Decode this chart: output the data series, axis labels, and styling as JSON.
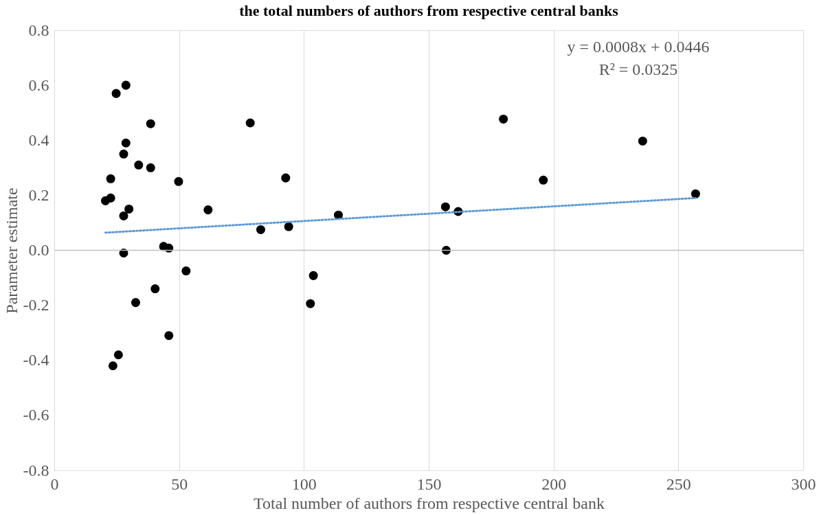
{
  "chart_data": {
    "type": "scatter",
    "title": "the total numbers of authors from respective central banks",
    "xlabel": "Total number of authors from respective central bank",
    "ylabel": "Parameter estimate",
    "xlim": [
      0,
      300
    ],
    "xticks": [
      0,
      50,
      100,
      150,
      200,
      250,
      300
    ],
    "ylim": [
      -0.8,
      0.8
    ],
    "yticks": [
      {
        "value": 0.8,
        "label": "0.8"
      },
      {
        "value": 0.6,
        "label": "0.6"
      },
      {
        "value": 0.4,
        "label": "0.4"
      },
      {
        "value": 0.2,
        "label": "0.2"
      },
      {
        "value": 0,
        "label": "0.0"
      },
      {
        "value": -0.2,
        "label": "-0.2"
      },
      {
        "value": -0.4,
        "label": "-0.4"
      },
      {
        "value": -0.6,
        "label": "-0.6"
      },
      {
        "value": -0.8,
        "label": "-0.8"
      }
    ],
    "grid": "x",
    "series": [
      {
        "marker": "circle",
        "color": "#000000",
        "x": [
          20.5,
          22.6,
          22.6,
          24.8,
          28.7,
          27.8,
          28.7,
          27.8,
          29.9,
          27.8,
          33.8,
          38.6,
          38.6,
          25.7,
          23.5,
          32.6,
          40.4,
          43.8,
          45.9,
          45.9,
          49.8,
          52.8,
          61.6,
          78.5,
          82.7,
          92.7,
          93.9,
          102.6,
          103.8,
          113.8,
          156.7,
          157.0,
          161.8,
          179.9,
          195.9,
          235.7,
          256.9
        ],
        "values": [
          0.18,
          0.19,
          0.26,
          0.57,
          0.6,
          0.35,
          0.39,
          0.125,
          0.15,
          -0.01,
          0.31,
          0.3,
          0.46,
          -0.38,
          -0.42,
          -0.19,
          -0.14,
          0.014,
          0.008,
          -0.31,
          0.25,
          -0.075,
          0.147,
          0.463,
          0.075,
          0.263,
          0.086,
          -0.194,
          -0.092,
          0.128,
          0.158,
          0.0,
          0.141,
          0.477,
          0.255,
          0.397,
          0.205
        ]
      },
      {
        "type": "line",
        "color": "#5b9bd5",
        "line_style": "dotted",
        "x": [
          20.5,
          256.9
        ],
        "values": [
          0.064,
          0.19
        ]
      }
    ],
    "ref_lines": [
      {
        "axis": "y",
        "value": 0,
        "color": "#bfbfbf"
      }
    ],
    "annotations": [
      "y = 0.0008x + 0.0446",
      "R² = 0.0325"
    ]
  }
}
